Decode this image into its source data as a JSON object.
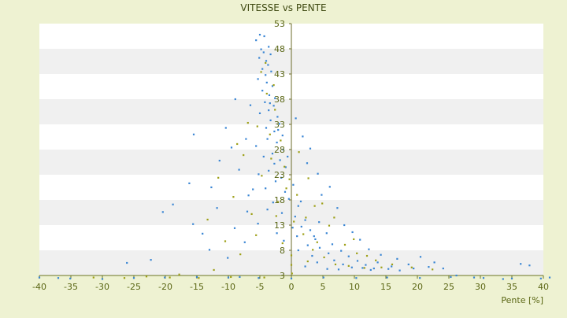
{
  "chart_data": {
    "type": "scatter",
    "title": "VITESSE vs PENTE",
    "xlabel": "Pente [%]",
    "ylabel": "",
    "xlim": [
      -40,
      40
    ],
    "ylim": [
      3,
      53
    ],
    "x_ticks": [
      -40,
      -35,
      -30,
      -25,
      -20,
      -15,
      -10,
      -5,
      0,
      5,
      10,
      15,
      20,
      25,
      30,
      35,
      40
    ],
    "y_ticks": [
      3,
      8,
      13,
      18,
      23,
      28,
      33,
      38,
      43,
      48,
      53
    ],
    "band_colors": [
      "#ffffff",
      "#f0f0f0"
    ],
    "colors": {
      "primary": "#3a86d4",
      "secondary": "#9ea018",
      "axis": "#6b7524"
    },
    "grid": true,
    "legend": "none",
    "series": [
      {
        "points": [
          [
            -5.0,
            50.8
          ],
          [
            -4.3,
            50.5
          ],
          [
            -5.6,
            49.7
          ],
          [
            -3.6,
            48.4
          ],
          [
            -4.4,
            47.3
          ],
          [
            -3.3,
            46.9
          ],
          [
            -5.1,
            46.2
          ],
          [
            -4.0,
            45.6
          ],
          [
            -3.7,
            44.8
          ],
          [
            -4.6,
            44.0
          ],
          [
            -3.2,
            43.5
          ],
          [
            -4.1,
            42.8
          ],
          [
            -5.3,
            42.0
          ],
          [
            -3.9,
            41.3
          ],
          [
            -3.0,
            40.6
          ],
          [
            -4.6,
            39.7
          ],
          [
            -3.5,
            38.8
          ],
          [
            -2.6,
            38.2
          ],
          [
            -4.2,
            37.4
          ],
          [
            -2.8,
            36.7
          ],
          [
            -3.6,
            35.8
          ],
          [
            -5.0,
            35.2
          ],
          [
            -2.2,
            34.5
          ],
          [
            -3.3,
            33.8
          ],
          [
            -1.9,
            33.1
          ],
          [
            -4.0,
            32.3
          ],
          [
            -2.7,
            31.6
          ],
          [
            -1.4,
            30.8
          ],
          [
            -3.8,
            30.1
          ],
          [
            -2.3,
            29.4
          ],
          [
            -5.6,
            28.7
          ],
          [
            -1.3,
            28.0
          ],
          [
            -3.0,
            27.2
          ],
          [
            -4.4,
            26.6
          ],
          [
            -1.8,
            25.9
          ],
          [
            -2.7,
            25.2
          ],
          [
            -0.9,
            24.5
          ],
          [
            -3.6,
            23.8
          ],
          [
            -5.2,
            23.1
          ],
          [
            -1.6,
            22.4
          ],
          [
            -2.5,
            21.7
          ],
          [
            0.3,
            21.0
          ],
          [
            -4.1,
            20.3
          ],
          [
            -1.0,
            19.6
          ],
          [
            -6.8,
            18.9
          ],
          [
            -0.4,
            18.2
          ],
          [
            -2.9,
            17.5
          ],
          [
            1.1,
            16.8
          ],
          [
            -3.8,
            16.1
          ],
          [
            -1.5,
            15.4
          ],
          [
            0.6,
            14.7
          ],
          [
            2.2,
            14.0
          ],
          [
            -5.3,
            13.3
          ],
          [
            1.6,
            12.7
          ],
          [
            3.0,
            12.0
          ],
          [
            -2.3,
            11.4
          ],
          [
            0.9,
            10.8
          ],
          [
            3.8,
            10.2
          ],
          [
            -7.4,
            9.6
          ],
          [
            2.6,
            9.0
          ],
          [
            4.5,
            8.5
          ],
          [
            1.1,
            8.0
          ],
          [
            5.9,
            7.4
          ],
          [
            3.3,
            6.9
          ],
          [
            -10.1,
            6.5
          ],
          [
            6.8,
            6.0
          ],
          [
            4.1,
            5.6
          ],
          [
            8.2,
            5.2
          ],
          [
            2.2,
            4.8
          ],
          [
            9.6,
            4.6
          ],
          [
            11.3,
            4.5
          ],
          [
            5.7,
            4.3
          ],
          [
            13.1,
            4.4
          ],
          [
            7.5,
            4.2
          ],
          [
            15.4,
            4.3
          ],
          [
            -13.0,
            8.1
          ],
          [
            -15.6,
            13.2
          ],
          [
            -18.8,
            17.1
          ],
          [
            -16.2,
            21.3
          ],
          [
            -11.4,
            25.8
          ],
          [
            -9.5,
            28.4
          ],
          [
            -12.7,
            20.5
          ],
          [
            -8.3,
            24.0
          ],
          [
            -7.0,
            15.7
          ],
          [
            -14.1,
            11.3
          ],
          [
            -11.8,
            16.4
          ],
          [
            -9.0,
            12.4
          ],
          [
            -6.1,
            20.1
          ],
          [
            -20.4,
            15.6
          ],
          [
            -22.3,
            6.1
          ],
          [
            -26.1,
            5.5
          ],
          [
            -15.5,
            31.0
          ],
          [
            -10.4,
            32.3
          ],
          [
            -6.5,
            36.8
          ],
          [
            -8.9,
            38.0
          ],
          [
            -7.2,
            30.1
          ],
          [
            0.7,
            34.2
          ],
          [
            1.8,
            30.6
          ],
          [
            3.0,
            28.2
          ],
          [
            2.5,
            25.3
          ],
          [
            4.2,
            23.2
          ],
          [
            4.8,
            19.0
          ],
          [
            6.1,
            20.6
          ],
          [
            7.3,
            16.4
          ],
          [
            8.4,
            13.0
          ],
          [
            9.7,
            11.6
          ],
          [
            10.9,
            10.1
          ],
          [
            12.3,
            8.2
          ],
          [
            14.2,
            7.1
          ],
          [
            16.8,
            6.3
          ],
          [
            18.6,
            5.2
          ],
          [
            20.5,
            6.7
          ],
          [
            22.7,
            5.6
          ],
          [
            19.4,
            4.4
          ],
          [
            24.1,
            4.4
          ],
          [
            26.2,
            3.0
          ],
          [
            29.0,
            2.6
          ],
          [
            33.6,
            2.3
          ],
          [
            36.4,
            5.3
          ],
          [
            37.8,
            5.0
          ],
          [
            39.6,
            2.4
          ],
          [
            -1.2,
            9.9
          ],
          [
            0.2,
            12.5
          ],
          [
            1.5,
            17.7
          ],
          [
            -0.6,
            26.6
          ],
          [
            -2.1,
            31.9
          ],
          [
            -3.4,
            37.2
          ],
          [
            -4.8,
            47.9
          ],
          [
            5.6,
            11.4
          ],
          [
            6.5,
            9.2
          ],
          [
            4.4,
            13.6
          ],
          [
            3.6,
            10.8
          ],
          [
            7.9,
            7.9
          ],
          [
            9.1,
            6.8
          ],
          [
            10.5,
            5.9
          ],
          [
            11.8,
            5.1
          ],
          [
            12.6,
            4.1
          ],
          [
            13.7,
            5.6
          ],
          [
            15.9,
            4.8
          ],
          [
            17.2,
            4.0
          ],
          [
            21.8,
            4.7
          ],
          [
            -40.0,
            2.6
          ],
          [
            -37.0,
            2.5
          ],
          [
            -35.1,
            2.4
          ],
          [
            -30.0,
            2.3
          ],
          [
            -25.0,
            2.5
          ],
          [
            -20.1,
            2.6
          ],
          [
            -15.0,
            2.7
          ],
          [
            -10.0,
            2.6
          ],
          [
            -5.2,
            2.5
          ],
          [
            0.0,
            2.4
          ],
          [
            5.1,
            2.6
          ],
          [
            10.3,
            2.5
          ],
          [
            15.2,
            2.6
          ],
          [
            20.4,
            2.5
          ],
          [
            25.3,
            2.7
          ],
          [
            30.5,
            2.5
          ],
          [
            35.0,
            2.4
          ],
          [
            41.0,
            2.6
          ],
          [
            -8.2,
            2.7
          ]
        ]
      },
      {
        "points": [
          [
            -4.8,
            43.4
          ],
          [
            -3.9,
            39.1
          ],
          [
            -2.6,
            35.9
          ],
          [
            -5.4,
            32.6
          ],
          [
            -1.7,
            29.8
          ],
          [
            -3.2,
            26.2
          ],
          [
            -4.7,
            22.8
          ],
          [
            -0.8,
            20.3
          ],
          [
            -2.1,
            17.6
          ],
          [
            -6.3,
            15.2
          ],
          [
            0.4,
            13.7
          ],
          [
            1.9,
            11.2
          ],
          [
            -1.4,
            9.4
          ],
          [
            3.4,
            8.1
          ],
          [
            5.2,
            6.6
          ],
          [
            2.6,
            5.8
          ],
          [
            7.0,
            5.2
          ],
          [
            9.1,
            4.9
          ],
          [
            11.6,
            4.5
          ],
          [
            14.3,
            4.6
          ],
          [
            -9.2,
            18.6
          ],
          [
            -11.6,
            22.4
          ],
          [
            -7.6,
            26.9
          ],
          [
            -13.3,
            14.1
          ],
          [
            -10.5,
            9.8
          ],
          [
            -8.1,
            7.2
          ],
          [
            3.7,
            16.8
          ],
          [
            6.0,
            12.9
          ],
          [
            8.5,
            9.1
          ],
          [
            10.4,
            7.4
          ],
          [
            13.4,
            6.0
          ],
          [
            16.0,
            5.2
          ],
          [
            19.1,
            4.6
          ],
          [
            22.4,
            4.2
          ],
          [
            -3.4,
            31.0
          ],
          [
            -1.1,
            24.6
          ],
          [
            0.9,
            19.0
          ],
          [
            2.3,
            14.5
          ],
          [
            4.1,
            9.6
          ],
          [
            -2.4,
            14.8
          ],
          [
            -5.6,
            11.0
          ],
          [
            -12.3,
            4.1
          ],
          [
            -17.8,
            3.2
          ],
          [
            -23.0,
            2.8
          ],
          [
            -31.4,
            2.6
          ],
          [
            -26.5,
            2.5
          ],
          [
            -19.3,
            2.6
          ],
          [
            -14.7,
            2.5
          ],
          [
            -9.6,
            2.7
          ],
          [
            -4.3,
            2.6
          ],
          [
            0.1,
            3.4
          ],
          [
            0.0,
            5.1
          ],
          [
            0.0,
            7.0
          ],
          [
            -0.3,
            22.1
          ],
          [
            -2.8,
            40.8
          ],
          [
            -4.1,
            45.2
          ],
          [
            -6.9,
            33.3
          ],
          [
            -8.6,
            29.1
          ],
          [
            1.2,
            27.5
          ],
          [
            2.7,
            22.3
          ],
          [
            4.9,
            17.3
          ],
          [
            6.8,
            14.5
          ],
          [
            9.9,
            10.2
          ],
          [
            12.0,
            6.9
          ]
        ]
      }
    ]
  }
}
